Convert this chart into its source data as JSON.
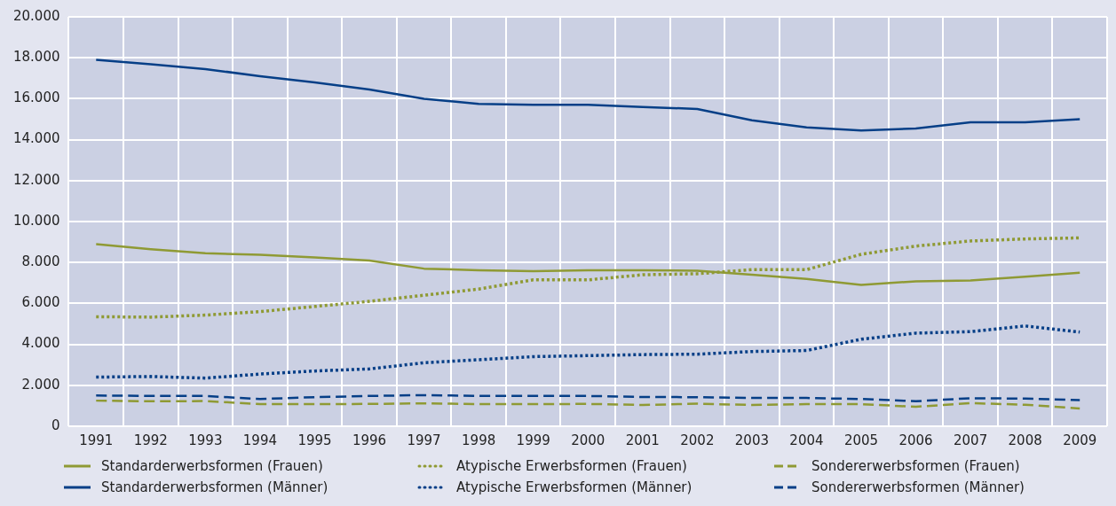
{
  "chart_data": {
    "type": "line",
    "categories": [
      "1991",
      "1992",
      "1993",
      "1994",
      "1995",
      "1996",
      "1997",
      "1998",
      "1999",
      "2000",
      "2001",
      "2002",
      "2003",
      "2004",
      "2005",
      "2006",
      "2007",
      "2008",
      "2009"
    ],
    "ylim": [
      0,
      20000
    ],
    "yticks": [
      {
        "value": 0,
        "label": "0"
      },
      {
        "value": 2000,
        "label": "2.000"
      },
      {
        "value": 4000,
        "label": "4.000"
      },
      {
        "value": 6000,
        "label": "6.000"
      },
      {
        "value": 8000,
        "label": "8.000"
      },
      {
        "value": 10000,
        "label": "10.000"
      },
      {
        "value": 12000,
        "label": "12.000"
      },
      {
        "value": 14000,
        "label": "14.000"
      },
      {
        "value": 16000,
        "label": "16.000"
      },
      {
        "value": 18000,
        "label": "18.000"
      },
      {
        "value": 20000,
        "label": "20.000"
      }
    ],
    "grid": true,
    "legend": "bottom",
    "marker": "none",
    "series": [
      {
        "name": "Standarderwerbsformen (Frauen)",
        "color": "#8f9a34",
        "line_style": "solid",
        "values": [
          8900,
          8650,
          8450,
          8380,
          8250,
          8100,
          7700,
          7620,
          7580,
          7620,
          7620,
          7600,
          7400,
          7200,
          6900,
          7080,
          7120,
          7300,
          7500
        ]
      },
      {
        "name": "Atypische Erwerbsformen (Frauen)",
        "color": "#8f9a34",
        "line_style": "dotted",
        "values": [
          5350,
          5330,
          5430,
          5600,
          5850,
          6100,
          6400,
          6700,
          7150,
          7150,
          7400,
          7450,
          7650,
          7650,
          8400,
          8800,
          9050,
          9150,
          9200
        ]
      },
      {
        "name": "Sondererwerbsformen (Frauen)",
        "color": "#8f9a34",
        "line_style": "dashed",
        "values": [
          1250,
          1220,
          1230,
          1080,
          1080,
          1090,
          1120,
          1080,
          1080,
          1090,
          1040,
          1100,
          1040,
          1080,
          1080,
          950,
          1130,
          1050,
          870
        ]
      },
      {
        "name": "Standarderwerbsformen (Männer)",
        "color": "#063f87",
        "line_style": "solid",
        "values": [
          17900,
          17680,
          17450,
          17100,
          16800,
          16450,
          16000,
          15750,
          15700,
          15700,
          15600,
          15500,
          14950,
          14600,
          14450,
          14550,
          14850,
          14850,
          15000
        ]
      },
      {
        "name": "Atypische Erwerbsformen (Männer)",
        "color": "#063f87",
        "line_style": "dotted",
        "values": [
          2400,
          2430,
          2350,
          2550,
          2700,
          2800,
          3100,
          3250,
          3400,
          3450,
          3500,
          3520,
          3650,
          3700,
          4250,
          4550,
          4620,
          4900,
          4600
        ]
      },
      {
        "name": "Sondererwerbsformen (Männer)",
        "color": "#063f87",
        "line_style": "dashed",
        "values": [
          1500,
          1480,
          1480,
          1330,
          1420,
          1480,
          1520,
          1480,
          1480,
          1480,
          1430,
          1420,
          1380,
          1380,
          1330,
          1220,
          1370,
          1350,
          1280
        ]
      }
    ]
  }
}
